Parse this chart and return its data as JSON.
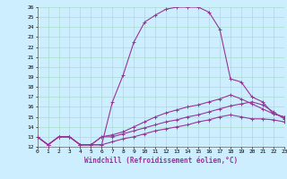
{
  "title": "",
  "xlabel": "Windchill (Refroidissement éolien,°C)",
  "ylabel": "",
  "xlim": [
    0,
    23
  ],
  "ylim": [
    12,
    26
  ],
  "yticks": [
    12,
    13,
    14,
    15,
    16,
    17,
    18,
    19,
    20,
    21,
    22,
    23,
    24,
    25,
    26
  ],
  "xticks": [
    0,
    1,
    2,
    3,
    4,
    5,
    6,
    7,
    8,
    9,
    10,
    11,
    12,
    13,
    14,
    15,
    16,
    17,
    18,
    19,
    20,
    21,
    22,
    23
  ],
  "bg_color": "#cceeff",
  "grid_color": "#aaddcc",
  "line_color": "#993399",
  "curve1_x": [
    0,
    1,
    2,
    3,
    4,
    5,
    6,
    7,
    8,
    9,
    10,
    11,
    12,
    13,
    14,
    15,
    16,
    17,
    18,
    19,
    20,
    21,
    22,
    23
  ],
  "curve1_y": [
    13.0,
    12.2,
    13.0,
    13.0,
    12.2,
    12.2,
    12.2,
    16.5,
    19.2,
    22.5,
    24.5,
    25.2,
    25.8,
    26.0,
    26.0,
    26.0,
    25.5,
    23.8,
    18.8,
    18.5,
    17.0,
    16.5,
    15.3,
    15.0
  ],
  "curve2_x": [
    0,
    1,
    2,
    3,
    4,
    5,
    6,
    7,
    8,
    9,
    10,
    11,
    12,
    13,
    14,
    15,
    16,
    17,
    18,
    19,
    20,
    21,
    22,
    23
  ],
  "curve2_y": [
    13.0,
    12.2,
    13.0,
    13.0,
    12.2,
    12.2,
    13.0,
    13.2,
    13.5,
    14.0,
    14.5,
    15.0,
    15.4,
    15.7,
    16.0,
    16.2,
    16.5,
    16.8,
    17.2,
    16.8,
    16.3,
    15.8,
    15.3,
    15.0
  ],
  "curve3_x": [
    0,
    1,
    2,
    3,
    4,
    5,
    6,
    7,
    8,
    9,
    10,
    11,
    12,
    13,
    14,
    15,
    16,
    17,
    18,
    19,
    20,
    21,
    22,
    23
  ],
  "curve3_y": [
    13.0,
    12.2,
    13.0,
    13.0,
    12.2,
    12.2,
    13.0,
    13.0,
    13.3,
    13.6,
    13.9,
    14.2,
    14.5,
    14.7,
    15.0,
    15.2,
    15.5,
    15.8,
    16.1,
    16.3,
    16.5,
    16.2,
    15.5,
    14.8
  ],
  "curve4_x": [
    0,
    1,
    2,
    3,
    4,
    5,
    6,
    7,
    8,
    9,
    10,
    11,
    12,
    13,
    14,
    15,
    16,
    17,
    18,
    19,
    20,
    21,
    22,
    23
  ],
  "curve4_y": [
    13.0,
    12.2,
    13.0,
    13.0,
    12.2,
    12.2,
    12.2,
    12.5,
    12.8,
    13.0,
    13.3,
    13.6,
    13.8,
    14.0,
    14.2,
    14.5,
    14.7,
    15.0,
    15.2,
    15.0,
    14.8,
    14.8,
    14.7,
    14.5
  ],
  "tick_fontsize": 4.5,
  "xlabel_fontsize": 5.5
}
